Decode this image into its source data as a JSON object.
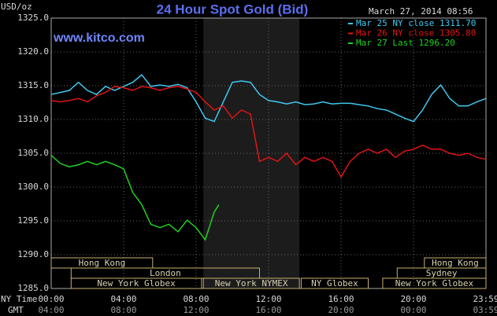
{
  "chart_data": {
    "type": "line",
    "title": "24 Hour Spot Gold (Bid)",
    "subtitle": "www.kitco.com",
    "timestamp": "March 27, 2014 08:56",
    "y_label": "USD/oz",
    "x_label": "NY Time",
    "x2_label": "GMT",
    "xlim": [
      0,
      24
    ],
    "ylim": [
      1285,
      1325
    ],
    "yticks": [
      {
        "value": 1285,
        "label": "1285.0"
      },
      {
        "value": 1290,
        "label": "1290.0"
      },
      {
        "value": 1295,
        "label": "1295.0"
      },
      {
        "value": 1300,
        "label": "1300.0"
      },
      {
        "value": 1305,
        "label": "1305.0"
      },
      {
        "value": 1310,
        "label": "1310.0"
      },
      {
        "value": 1315,
        "label": "1315.0"
      },
      {
        "value": 1320,
        "label": "1320.0"
      },
      {
        "value": 1325,
        "label": "1325.0"
      }
    ],
    "xticks": [
      {
        "value": 0,
        "label": "00:00"
      },
      {
        "value": 4,
        "label": "04:00"
      },
      {
        "value": 8,
        "label": "08:00"
      },
      {
        "value": 12,
        "label": "12:00"
      },
      {
        "value": 16,
        "label": "16:00"
      },
      {
        "value": 20,
        "label": "20:00"
      },
      {
        "value": 24,
        "label": "23:59"
      }
    ],
    "x2ticks": [
      {
        "value": 0,
        "label": "04:00"
      },
      {
        "value": 4,
        "label": "08:00"
      },
      {
        "value": 8,
        "label": "12:00"
      },
      {
        "value": 12,
        "label": "16:00"
      },
      {
        "value": 16,
        "label": "20:00"
      },
      {
        "value": 20,
        "label": "00:00"
      },
      {
        "value": 24,
        "label": "03:59"
      }
    ],
    "grid": true,
    "shade": [
      8.4,
      13.7
    ],
    "sessions": [
      [
        {
          "label": "Hong Kong",
          "start": 0,
          "end": 5.6
        },
        {
          "label": "Hong Kong",
          "start": 20.6,
          "end": 24
        }
      ],
      [
        {
          "label": "London",
          "start": 1.1,
          "end": 11.5
        },
        {
          "label": "Sydney",
          "start": 19.1,
          "end": 24
        }
      ],
      [
        {
          "label": "New York Globex",
          "start": 1.1,
          "end": 8.3
        },
        {
          "label": "New York NYMEX",
          "start": 8.4,
          "end": 13.7
        },
        {
          "label": "NY Globex",
          "start": 13.8,
          "end": 17.5
        },
        {
          "label": "New York Globex",
          "start": 18.3,
          "end": 24
        }
      ]
    ],
    "series": [
      {
        "name": "Mar 25 NY close 1311.70",
        "color": "#40c8f0",
        "x": [
          0,
          0.5,
          1,
          1.5,
          2,
          2.5,
          3,
          3.5,
          4,
          4.5,
          5,
          5.5,
          6,
          6.5,
          7,
          7.5,
          8,
          8.5,
          9,
          9.5,
          10,
          10.5,
          11,
          11.5,
          12,
          12.5,
          13,
          13.5,
          14,
          14.5,
          15,
          15.5,
          16,
          16.5,
          17,
          17.5,
          18,
          18.5,
          19,
          19.5,
          20,
          20.5,
          21,
          21.5,
          22,
          22.5,
          23,
          23.5,
          24
        ],
        "values": [
          1313.7,
          1314.0,
          1314.3,
          1315.5,
          1314.3,
          1313.7,
          1314.9,
          1314.3,
          1314.9,
          1315.5,
          1316.6,
          1314.9,
          1315.1,
          1314.9,
          1315.2,
          1314.7,
          1312.6,
          1310.2,
          1309.7,
          1312.6,
          1315.5,
          1315.7,
          1315.5,
          1313.7,
          1312.8,
          1312.6,
          1312.3,
          1312.6,
          1312.2,
          1312.3,
          1312.6,
          1312.3,
          1312.4,
          1312.4,
          1312.2,
          1312.0,
          1311.6,
          1311.4,
          1310.8,
          1310.2,
          1309.7,
          1311.4,
          1313.7,
          1315.1,
          1313.1,
          1312.0,
          1312.0,
          1312.6,
          1313.1
        ]
      },
      {
        "name": "Mar 26 NY close 1305.80",
        "color": "#e01414",
        "x": [
          0,
          0.5,
          1,
          1.5,
          2,
          2.5,
          3,
          3.5,
          4,
          4.5,
          5,
          5.5,
          6,
          6.5,
          7,
          7.5,
          8,
          8.5,
          9,
          9.5,
          10,
          10.5,
          11,
          11.5,
          12,
          12.5,
          13,
          13.5,
          14,
          14.5,
          15,
          15.5,
          16,
          16.5,
          17,
          17.5,
          18,
          18.5,
          19,
          19.5,
          20,
          20.5,
          21,
          21.5,
          22,
          22.5,
          23,
          23.5,
          24
        ],
        "values": [
          1312.8,
          1312.6,
          1312.8,
          1313.1,
          1312.6,
          1313.5,
          1314.0,
          1314.9,
          1314.7,
          1314.3,
          1314.9,
          1314.7,
          1314.3,
          1314.7,
          1314.9,
          1314.5,
          1314.0,
          1312.6,
          1311.4,
          1312.0,
          1310.2,
          1311.4,
          1310.8,
          1303.8,
          1304.4,
          1303.8,
          1305.0,
          1303.3,
          1304.4,
          1303.8,
          1304.4,
          1303.8,
          1301.5,
          1303.8,
          1305.0,
          1305.6,
          1305.0,
          1305.6,
          1304.4,
          1305.3,
          1305.6,
          1306.2,
          1305.6,
          1305.6,
          1305.0,
          1304.7,
          1305.0,
          1304.4,
          1304.1
        ]
      },
      {
        "name": "Mar 27 Last 1296.20",
        "color": "#20d020",
        "x": [
          0,
          0.5,
          1,
          1.5,
          2,
          2.5,
          3,
          3.5,
          4,
          4.5,
          5,
          5.5,
          6,
          6.5,
          7,
          7.5,
          8,
          8.5,
          9,
          9.25
        ],
        "values": [
          1304.7,
          1303.5,
          1303.0,
          1303.3,
          1303.8,
          1303.3,
          1303.8,
          1303.3,
          1302.7,
          1299.2,
          1297.4,
          1294.5,
          1294.0,
          1294.5,
          1293.4,
          1295.1,
          1294.0,
          1292.2,
          1296.3,
          1297.4
        ]
      }
    ]
  }
}
